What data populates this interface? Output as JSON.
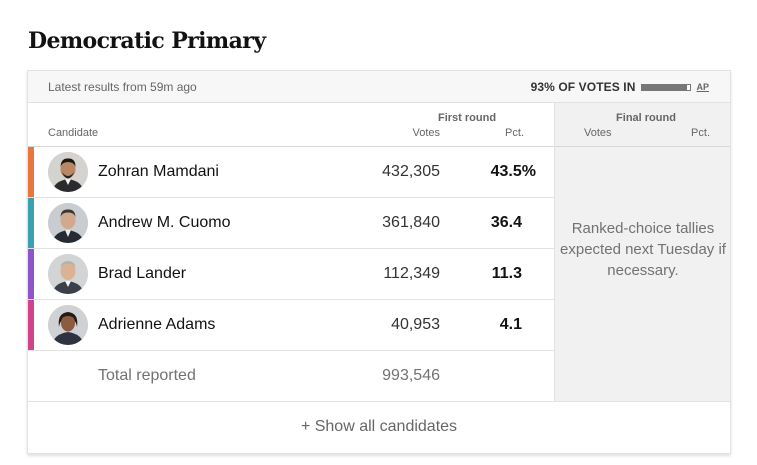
{
  "race": {
    "title": "Democratic Primary",
    "latest": "Latest results from 59m ago",
    "reporting": {
      "text": "93% OF VOTES IN",
      "fraction": 0.93,
      "source": "AP"
    }
  },
  "columns": {
    "candidate": "Candidate",
    "first_round": "First round",
    "final_round": "Final round",
    "votes": "Votes",
    "pct": "Pct."
  },
  "candidates": [
    {
      "name": "Zohran Mamdani",
      "votes": "432,305",
      "pct": "43.5%",
      "color": "#e8773d",
      "avatar": "candidate-photo-mamdani"
    },
    {
      "name": "Andrew M. Cuomo",
      "votes": "361,840",
      "pct": "36.4",
      "color": "#3aa1ae",
      "avatar": "candidate-photo-cuomo"
    },
    {
      "name": "Brad Lander",
      "votes": "112,349",
      "pct": "11.3",
      "color": "#8d55c7",
      "avatar": "candidate-photo-lander"
    },
    {
      "name": "Adrienne Adams",
      "votes": "40,953",
      "pct": "4.1",
      "color": "#d2448a",
      "avatar": "candidate-photo-adams"
    }
  ],
  "total": {
    "label": "Total reported",
    "votes": "993,546"
  },
  "final_round_note": "Ranked-choice tallies expected next Tuesday if necessary.",
  "show_all": "+ Show all candidates"
}
